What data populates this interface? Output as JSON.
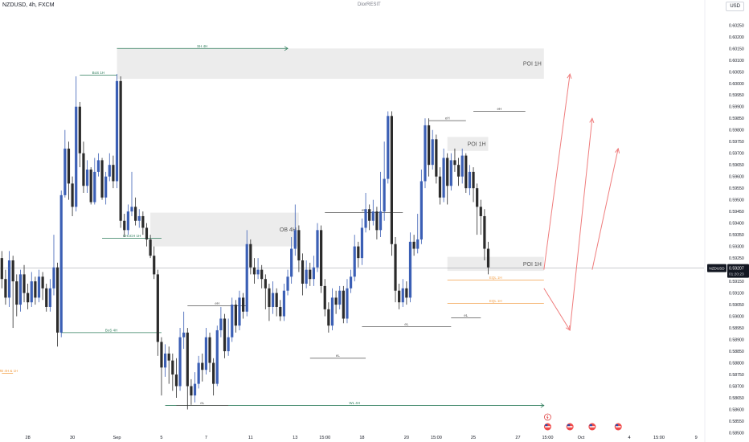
{
  "header": {
    "symbol": "NZDUSD, 4h, FXCM",
    "watermark": "DiorRESIT",
    "currency": "USD"
  },
  "price_tag": {
    "value": "0.59207",
    "time": "01:20:23"
  },
  "colors": {
    "bull": "#3b5fb5",
    "bear": "#2b2b2b",
    "structure": "#2e7d5b",
    "ob_zone": "#ececec",
    "proj": "#ef7d7d",
    "eq_line": "#555555",
    "fib": "#f3a14a"
  },
  "chart_data": {
    "type": "candlestick",
    "y_axis": {
      "min": 0.58512,
      "max": 0.60358,
      "ticks": [
        "0.60250",
        "0.60200",
        "0.60150",
        "0.60100",
        "0.60050",
        "0.60000",
        "0.59950",
        "0.59900",
        "0.59850",
        "0.59800",
        "0.59750",
        "0.59700",
        "0.59650",
        "0.59600",
        "0.59550",
        "0.59500",
        "0.59450",
        "0.59400",
        "0.59350",
        "0.59300",
        "0.59250",
        "0.59200",
        "0.59150",
        "0.59100",
        "0.59050",
        "0.59000",
        "0.58950",
        "0.58900",
        "0.58850",
        "0.58800",
        "0.58750",
        "0.58700",
        "0.58650",
        "0.58600",
        "0.58550",
        "0.58500"
      ]
    },
    "x_axis": {
      "labels": [
        {
          "text": "28",
          "slot": 7
        },
        {
          "text": "30",
          "slot": 19
        },
        {
          "text": "Sep",
          "slot": 31
        },
        {
          "text": "5",
          "slot": 43
        },
        {
          "text": "7",
          "slot": 55
        },
        {
          "text": "11",
          "slot": 67
        },
        {
          "text": "13",
          "slot": 79
        },
        {
          "text": "15:00",
          "slot": 87
        },
        {
          "text": "18",
          "slot": 97
        },
        {
          "text": "20",
          "slot": 109
        },
        {
          "text": "15:00",
          "slot": 117
        },
        {
          "text": "25",
          "slot": 127
        },
        {
          "text": "27",
          "slot": 139
        },
        {
          "text": "15:00",
          "slot": 147
        },
        {
          "text": "Oct",
          "slot": 156
        },
        {
          "text": "4",
          "slot": 169
        },
        {
          "text": "15:00",
          "slot": 177
        },
        {
          "text": "9",
          "slot": 187
        }
      ]
    },
    "candles": [
      {
        "o": 0.5925,
        "c": 0.5916,
        "h": 0.5928,
        "l": 0.5912
      },
      {
        "o": 0.5916,
        "c": 0.5908,
        "h": 0.592,
        "l": 0.5905
      },
      {
        "o": 0.5908,
        "c": 0.5924,
        "h": 0.5928,
        "l": 0.5904
      },
      {
        "o": 0.5924,
        "c": 0.5915,
        "h": 0.5926,
        "l": 0.5895
      },
      {
        "o": 0.5915,
        "c": 0.5905,
        "h": 0.5918,
        "l": 0.59
      },
      {
        "o": 0.5905,
        "c": 0.5918,
        "h": 0.592,
        "l": 0.5902
      },
      {
        "o": 0.5918,
        "c": 0.591,
        "h": 0.5922,
        "l": 0.5906
      },
      {
        "o": 0.591,
        "c": 0.5906,
        "h": 0.5914,
        "l": 0.5903
      },
      {
        "o": 0.5906,
        "c": 0.5915,
        "h": 0.5919,
        "l": 0.5904
      },
      {
        "o": 0.5915,
        "c": 0.5908,
        "h": 0.5917,
        "l": 0.5905
      },
      {
        "o": 0.5908,
        "c": 0.5917,
        "h": 0.592,
        "l": 0.5906
      },
      {
        "o": 0.5917,
        "c": 0.5912,
        "h": 0.5919,
        "l": 0.5907
      },
      {
        "o": 0.5912,
        "c": 0.5904,
        "h": 0.5914,
        "l": 0.5902
      },
      {
        "o": 0.5904,
        "c": 0.5912,
        "h": 0.5916,
        "l": 0.5902
      },
      {
        "o": 0.5912,
        "c": 0.5921,
        "h": 0.5935,
        "l": 0.5909
      },
      {
        "o": 0.5921,
        "c": 0.5893,
        "h": 0.5923,
        "l": 0.5887
      },
      {
        "o": 0.5893,
        "c": 0.5952,
        "h": 0.5954,
        "l": 0.5891
      },
      {
        "o": 0.5952,
        "c": 0.5972,
        "h": 0.598,
        "l": 0.5951
      },
      {
        "o": 0.5972,
        "c": 0.5957,
        "h": 0.5975,
        "l": 0.595
      },
      {
        "o": 0.5957,
        "c": 0.5947,
        "h": 0.596,
        "l": 0.5943
      },
      {
        "o": 0.5947,
        "c": 0.599,
        "h": 0.6003,
        "l": 0.5945
      },
      {
        "o": 0.599,
        "c": 0.597,
        "h": 0.5992,
        "l": 0.5964
      },
      {
        "o": 0.597,
        "c": 0.5956,
        "h": 0.5975,
        "l": 0.5953
      },
      {
        "o": 0.5956,
        "c": 0.5963,
        "h": 0.5967,
        "l": 0.5953
      },
      {
        "o": 0.5963,
        "c": 0.5949,
        "h": 0.5964,
        "l": 0.5948
      },
      {
        "o": 0.5949,
        "c": 0.5962,
        "h": 0.5968,
        "l": 0.5948
      },
      {
        "o": 0.5962,
        "c": 0.5967,
        "h": 0.597,
        "l": 0.596
      },
      {
        "o": 0.5967,
        "c": 0.5951,
        "h": 0.5968,
        "l": 0.595
      },
      {
        "o": 0.5951,
        "c": 0.596,
        "h": 0.5962,
        "l": 0.5948
      },
      {
        "o": 0.596,
        "c": 0.5965,
        "h": 0.597,
        "l": 0.5958
      },
      {
        "o": 0.5965,
        "c": 0.5958,
        "h": 0.5969,
        "l": 0.5955
      },
      {
        "o": 0.5958,
        "c": 0.6001,
        "h": 0.6004,
        "l": 0.5955
      },
      {
        "o": 0.6001,
        "c": 0.5941,
        "h": 0.6003,
        "l": 0.5938
      },
      {
        "o": 0.5941,
        "c": 0.5937,
        "h": 0.5944,
        "l": 0.5934
      },
      {
        "o": 0.5937,
        "c": 0.5945,
        "h": 0.5948,
        "l": 0.5935
      },
      {
        "o": 0.5945,
        "c": 0.5947,
        "h": 0.5962,
        "l": 0.5943
      },
      {
        "o": 0.5947,
        "c": 0.5941,
        "h": 0.5951,
        "l": 0.5939
      },
      {
        "o": 0.5941,
        "c": 0.5943,
        "h": 0.5946,
        "l": 0.5938
      },
      {
        "o": 0.5943,
        "c": 0.5938,
        "h": 0.5945,
        "l": 0.5935
      },
      {
        "o": 0.5938,
        "c": 0.5933,
        "h": 0.594,
        "l": 0.593
      },
      {
        "o": 0.5933,
        "c": 0.5926,
        "h": 0.5935,
        "l": 0.5925
      },
      {
        "o": 0.5926,
        "c": 0.5918,
        "h": 0.593,
        "l": 0.5916
      },
      {
        "o": 0.5918,
        "c": 0.5889,
        "h": 0.592,
        "l": 0.5883
      },
      {
        "o": 0.5889,
        "c": 0.5878,
        "h": 0.5891,
        "l": 0.5866
      },
      {
        "o": 0.5878,
        "c": 0.5884,
        "h": 0.5888,
        "l": 0.5874
      },
      {
        "o": 0.5884,
        "c": 0.5881,
        "h": 0.5887,
        "l": 0.5871
      },
      {
        "o": 0.5881,
        "c": 0.5875,
        "h": 0.5884,
        "l": 0.5868
      },
      {
        "o": 0.5875,
        "c": 0.587,
        "h": 0.5882,
        "l": 0.5865
      },
      {
        "o": 0.587,
        "c": 0.5891,
        "h": 0.5895,
        "l": 0.5868
      },
      {
        "o": 0.5891,
        "c": 0.5893,
        "h": 0.5902,
        "l": 0.5886
      },
      {
        "o": 0.5893,
        "c": 0.587,
        "h": 0.5895,
        "l": 0.586
      },
      {
        "o": 0.587,
        "c": 0.5866,
        "h": 0.5873,
        "l": 0.5862
      },
      {
        "o": 0.5866,
        "c": 0.5871,
        "h": 0.5876,
        "l": 0.5863
      },
      {
        "o": 0.5871,
        "c": 0.588,
        "h": 0.5883,
        "l": 0.5869
      },
      {
        "o": 0.588,
        "c": 0.5877,
        "h": 0.5884,
        "l": 0.5872
      },
      {
        "o": 0.5877,
        "c": 0.5891,
        "h": 0.5895,
        "l": 0.5875
      },
      {
        "o": 0.5891,
        "c": 0.588,
        "h": 0.5893,
        "l": 0.5876
      },
      {
        "o": 0.588,
        "c": 0.5871,
        "h": 0.5882,
        "l": 0.5866
      },
      {
        "o": 0.5871,
        "c": 0.5894,
        "h": 0.5896,
        "l": 0.587
      },
      {
        "o": 0.5894,
        "c": 0.5899,
        "h": 0.5904,
        "l": 0.5891
      },
      {
        "o": 0.5899,
        "c": 0.5885,
        "h": 0.5901,
        "l": 0.5882
      },
      {
        "o": 0.5885,
        "c": 0.5891,
        "h": 0.5899,
        "l": 0.5883
      },
      {
        "o": 0.5891,
        "c": 0.5905,
        "h": 0.5908,
        "l": 0.5889
      },
      {
        "o": 0.5905,
        "c": 0.5896,
        "h": 0.5907,
        "l": 0.5893
      },
      {
        "o": 0.5896,
        "c": 0.5908,
        "h": 0.5911,
        "l": 0.5894
      },
      {
        "o": 0.5908,
        "c": 0.5902,
        "h": 0.591,
        "l": 0.5899
      },
      {
        "o": 0.5902,
        "c": 0.5931,
        "h": 0.5937,
        "l": 0.59
      },
      {
        "o": 0.5931,
        "c": 0.5921,
        "h": 0.5933,
        "l": 0.5918
      },
      {
        "o": 0.5921,
        "c": 0.5918,
        "h": 0.5925,
        "l": 0.5914
      },
      {
        "o": 0.5918,
        "c": 0.592,
        "h": 0.5925,
        "l": 0.5916
      },
      {
        "o": 0.592,
        "c": 0.5916,
        "h": 0.5922,
        "l": 0.5912
      },
      {
        "o": 0.5916,
        "c": 0.5912,
        "h": 0.5918,
        "l": 0.5903
      },
      {
        "o": 0.5912,
        "c": 0.5904,
        "h": 0.5914,
        "l": 0.5898
      },
      {
        "o": 0.5904,
        "c": 0.591,
        "h": 0.5915,
        "l": 0.5901
      },
      {
        "o": 0.591,
        "c": 0.5904,
        "h": 0.5912,
        "l": 0.59
      },
      {
        "o": 0.5904,
        "c": 0.59,
        "h": 0.5907,
        "l": 0.5898
      },
      {
        "o": 0.59,
        "c": 0.5911,
        "h": 0.5914,
        "l": 0.5898
      },
      {
        "o": 0.5911,
        "c": 0.5917,
        "h": 0.592,
        "l": 0.5909
      },
      {
        "o": 0.5917,
        "c": 0.5929,
        "h": 0.5934,
        "l": 0.5914
      },
      {
        "o": 0.5929,
        "c": 0.5937,
        "h": 0.5948,
        "l": 0.5926
      },
      {
        "o": 0.5937,
        "c": 0.5924,
        "h": 0.5939,
        "l": 0.5919
      },
      {
        "o": 0.5924,
        "c": 0.5914,
        "h": 0.5927,
        "l": 0.5909
      },
      {
        "o": 0.5914,
        "c": 0.592,
        "h": 0.5924,
        "l": 0.5912
      },
      {
        "o": 0.592,
        "c": 0.5916,
        "h": 0.5923,
        "l": 0.5913
      },
      {
        "o": 0.5916,
        "c": 0.5921,
        "h": 0.5926,
        "l": 0.5913
      },
      {
        "o": 0.5921,
        "c": 0.5937,
        "h": 0.594,
        "l": 0.5919
      },
      {
        "o": 0.5937,
        "c": 0.5913,
        "h": 0.5939,
        "l": 0.591
      },
      {
        "o": 0.5913,
        "c": 0.5903,
        "h": 0.5916,
        "l": 0.59
      },
      {
        "o": 0.5903,
        "c": 0.5896,
        "h": 0.5906,
        "l": 0.5893
      },
      {
        "o": 0.5896,
        "c": 0.5908,
        "h": 0.5912,
        "l": 0.5894
      },
      {
        "o": 0.5908,
        "c": 0.5905,
        "h": 0.5911,
        "l": 0.5901
      },
      {
        "o": 0.5905,
        "c": 0.5911,
        "h": 0.5913,
        "l": 0.5903
      },
      {
        "o": 0.5911,
        "c": 0.5899,
        "h": 0.5913,
        "l": 0.5897
      },
      {
        "o": 0.5899,
        "c": 0.5912,
        "h": 0.5916,
        "l": 0.5897
      },
      {
        "o": 0.5912,
        "c": 0.5917,
        "h": 0.592,
        "l": 0.591
      },
      {
        "o": 0.5917,
        "c": 0.593,
        "h": 0.5935,
        "l": 0.5915
      },
      {
        "o": 0.593,
        "c": 0.5925,
        "h": 0.5932,
        "l": 0.5921
      },
      {
        "o": 0.5925,
        "c": 0.5938,
        "h": 0.5942,
        "l": 0.5922
      },
      {
        "o": 0.5938,
        "c": 0.5946,
        "h": 0.5953,
        "l": 0.5936
      },
      {
        "o": 0.5946,
        "c": 0.5941,
        "h": 0.5948,
        "l": 0.5937
      },
      {
        "o": 0.5941,
        "c": 0.5945,
        "h": 0.595,
        "l": 0.5939
      },
      {
        "o": 0.5945,
        "c": 0.5937,
        "h": 0.5947,
        "l": 0.5933
      },
      {
        "o": 0.5937,
        "c": 0.5945,
        "h": 0.5962,
        "l": 0.5934
      },
      {
        "o": 0.5945,
        "c": 0.5959,
        "h": 0.5975,
        "l": 0.5941
      },
      {
        "o": 0.5959,
        "c": 0.5986,
        "h": 0.5988,
        "l": 0.5957
      },
      {
        "o": 0.5986,
        "c": 0.5931,
        "h": 0.5988,
        "l": 0.5926
      },
      {
        "o": 0.5931,
        "c": 0.5911,
        "h": 0.5934,
        "l": 0.5906
      },
      {
        "o": 0.5911,
        "c": 0.5906,
        "h": 0.5914,
        "l": 0.5903
      },
      {
        "o": 0.5906,
        "c": 0.5912,
        "h": 0.5916,
        "l": 0.5904
      },
      {
        "o": 0.5912,
        "c": 0.5908,
        "h": 0.5915,
        "l": 0.5905
      },
      {
        "o": 0.5908,
        "c": 0.5932,
        "h": 0.5936,
        "l": 0.5906
      },
      {
        "o": 0.5932,
        "c": 0.5929,
        "h": 0.5935,
        "l": 0.5926
      },
      {
        "o": 0.5929,
        "c": 0.5933,
        "h": 0.5944,
        "l": 0.5927
      },
      {
        "o": 0.5933,
        "c": 0.5958,
        "h": 0.5963,
        "l": 0.5931
      },
      {
        "o": 0.5958,
        "c": 0.5982,
        "h": 0.5985,
        "l": 0.5955
      },
      {
        "o": 0.5982,
        "c": 0.5965,
        "h": 0.5985,
        "l": 0.596
      },
      {
        "o": 0.5965,
        "c": 0.5976,
        "h": 0.598,
        "l": 0.5963
      },
      {
        "o": 0.5976,
        "c": 0.596,
        "h": 0.5978,
        "l": 0.5957
      },
      {
        "o": 0.596,
        "c": 0.5951,
        "h": 0.5964,
        "l": 0.5948
      },
      {
        "o": 0.5951,
        "c": 0.5968,
        "h": 0.5972,
        "l": 0.5949
      },
      {
        "o": 0.5968,
        "c": 0.5956,
        "h": 0.597,
        "l": 0.5948
      },
      {
        "o": 0.5956,
        "c": 0.5967,
        "h": 0.597,
        "l": 0.5954
      },
      {
        "o": 0.5967,
        "c": 0.5965,
        "h": 0.5972,
        "l": 0.5962
      },
      {
        "o": 0.5965,
        "c": 0.596,
        "h": 0.5968,
        "l": 0.5956
      },
      {
        "o": 0.596,
        "c": 0.5969,
        "h": 0.5972,
        "l": 0.5957
      },
      {
        "o": 0.5969,
        "c": 0.5955,
        "h": 0.597,
        "l": 0.5953
      },
      {
        "o": 0.5955,
        "c": 0.5962,
        "h": 0.5965,
        "l": 0.5952
      },
      {
        "o": 0.5962,
        "c": 0.5955,
        "h": 0.5964,
        "l": 0.5949
      },
      {
        "o": 0.5955,
        "c": 0.5947,
        "h": 0.5957,
        "l": 0.5935
      },
      {
        "o": 0.5947,
        "c": 0.5943,
        "h": 0.595,
        "l": 0.5935
      },
      {
        "o": 0.5943,
        "c": 0.5929,
        "h": 0.5946,
        "l": 0.5924
      },
      {
        "o": 0.5929,
        "c": 0.5921,
        "h": 0.5932,
        "l": 0.5918
      }
    ],
    "zones": [
      {
        "label": "POI 1H",
        "top": 0.6015,
        "bottom": 0.6002,
        "from": 31,
        "to": 146
      },
      {
        "label": "OB 4H",
        "top": 0.59445,
        "bottom": 0.593,
        "from": 40,
        "to": 80
      },
      {
        "label": "POI 1H",
        "top": 0.5977,
        "bottom": 0.5971,
        "from": 120,
        "to": 131
      },
      {
        "label": "POI 1H",
        "top": 0.59255,
        "bottom": 0.59195,
        "from": 120,
        "to": 146
      }
    ],
    "levels": [
      {
        "label": "SH 4H",
        "price": 0.6015,
        "from": 31,
        "to": 77,
        "style": "structure",
        "arrow": true
      },
      {
        "label": "BoS 1H",
        "price": 0.60035,
        "from": 21,
        "to": 31,
        "style": "structure",
        "arrow": false
      },
      {
        "label": "CHoCH 1H",
        "price": 0.59335,
        "from": 27,
        "to": 43,
        "style": "structure",
        "arrow": false
      },
      {
        "label": "BoS 4H",
        "price": 0.5893,
        "from": 16,
        "to": 43,
        "style": "structure",
        "arrow": false
      },
      {
        "label": "WL 4H",
        "price": 0.58617,
        "from": 44,
        "to": 146,
        "style": "structure",
        "arrow": true
      },
      {
        "label": "eH",
        "price": 0.59045,
        "from": 50,
        "to": 66,
        "style": "eq",
        "arrow": false
      },
      {
        "label": "eH",
        "price": 0.59445,
        "from": 87,
        "to": 108,
        "style": "eq",
        "arrow": false
      },
      {
        "label": "eH",
        "price": 0.5984,
        "from": 115,
        "to": 125,
        "style": "eq",
        "arrow": false
      },
      {
        "label": "eL",
        "price": 0.5882,
        "from": 83,
        "to": 98,
        "style": "eq",
        "arrow": false
      },
      {
        "label": "eL",
        "price": 0.58955,
        "from": 97,
        "to": 121,
        "style": "eq",
        "arrow": false
      },
      {
        "label": "eL",
        "price": 0.58993,
        "from": 121,
        "to": 129,
        "style": "eq",
        "arrow": false
      },
      {
        "label": "eH",
        "price": 0.5988,
        "from": 127,
        "to": 141,
        "style": "eq",
        "arrow": false
      },
      {
        "label": "eL",
        "price": 0.58617,
        "from": 47,
        "to": 61,
        "style": "eq",
        "arrow": false
      },
      {
        "label": "EQL 1H",
        "price": 0.59155,
        "from": 120,
        "to": 146,
        "style": "fib",
        "arrow": false
      },
      {
        "label": "EQL 1H",
        "price": 0.59055,
        "from": 120,
        "to": 146,
        "style": "fib",
        "arrow": false
      },
      {
        "label": "IMB 4H & 1H",
        "price": 0.58755,
        "from": 0,
        "to": 3,
        "style": "fib",
        "arrow": false
      }
    ],
    "current_price": 0.59207,
    "projections": [
      {
        "from_slot": 146,
        "from_price": 0.592,
        "to_slot": 153,
        "to_price": 0.6004
      },
      {
        "from_slot": 146,
        "from_price": 0.5912,
        "to_slot": 153,
        "to_price": 0.5894
      },
      {
        "from_slot": 153,
        "from_price": 0.5894,
        "to_slot": 159,
        "to_price": 0.5985
      },
      {
        "from_slot": 159,
        "from_price": 0.592,
        "to_slot": 166,
        "to_price": 0.5972
      }
    ],
    "events": [
      {
        "slot": 147,
        "kind": "bolt",
        "row": 0
      },
      {
        "slot": 147,
        "kind": "flag",
        "row": 1
      },
      {
        "slot": 153,
        "kind": "flag",
        "row": 1
      },
      {
        "slot": 159,
        "kind": "flag",
        "row": 1
      },
      {
        "slot": 166,
        "kind": "flag",
        "row": 1
      }
    ]
  }
}
